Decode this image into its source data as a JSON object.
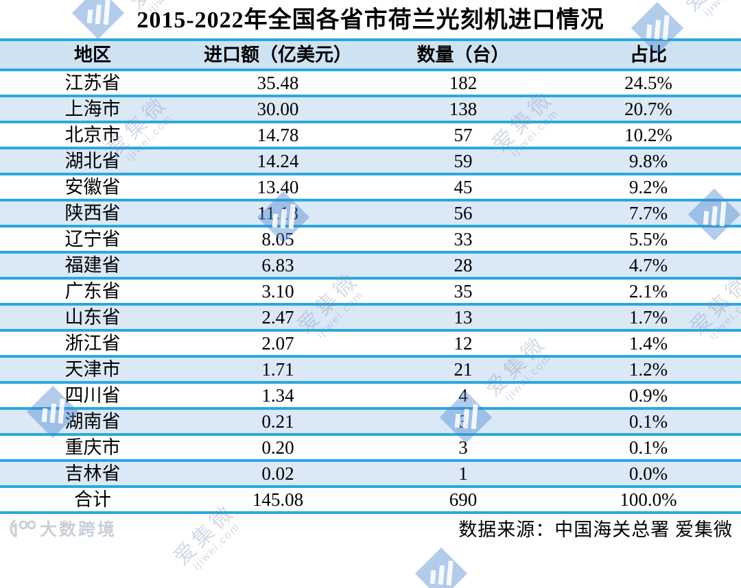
{
  "title": "2015-2022年全国各省市荷兰光刻机进口情况",
  "table": {
    "headers": [
      "地区",
      "进口额（亿美元）",
      "数量（台）",
      "占比"
    ],
    "rows": [
      {
        "region": "江苏省",
        "amount": "35.48",
        "units": "182",
        "share": "24.5%"
      },
      {
        "region": "上海市",
        "amount": "30.00",
        "units": "138",
        "share": "20.7%"
      },
      {
        "region": "北京市",
        "amount": "14.78",
        "units": "57",
        "share": "10.2%"
      },
      {
        "region": "湖北省",
        "amount": "14.24",
        "units": "59",
        "share": "9.8%"
      },
      {
        "region": "安徽省",
        "amount": "13.40",
        "units": "45",
        "share": "9.2%"
      },
      {
        "region": "陕西省",
        "amount": "11.18",
        "units": "56",
        "share": "7.7%"
      },
      {
        "region": "辽宁省",
        "amount": "8.05",
        "units": "33",
        "share": "5.5%"
      },
      {
        "region": "福建省",
        "amount": "6.83",
        "units": "28",
        "share": "4.7%"
      },
      {
        "region": "广东省",
        "amount": "3.10",
        "units": "35",
        "share": "2.1%"
      },
      {
        "region": "山东省",
        "amount": "2.47",
        "units": "13",
        "share": "1.7%"
      },
      {
        "region": "浙江省",
        "amount": "2.07",
        "units": "12",
        "share": "1.4%"
      },
      {
        "region": "天津市",
        "amount": "1.71",
        "units": "21",
        "share": "1.2%"
      },
      {
        "region": "四川省",
        "amount": "1.34",
        "units": "4",
        "share": "0.9%"
      },
      {
        "region": "湖南省",
        "amount": "0.21",
        "units": "3",
        "share": "0.1%"
      },
      {
        "region": "重庆市",
        "amount": "0.20",
        "units": "3",
        "share": "0.1%"
      },
      {
        "region": "吉林省",
        "amount": "0.02",
        "units": "1",
        "share": "0.0%"
      }
    ],
    "total": {
      "region": "合计",
      "amount": "145.08",
      "units": "690",
      "share": "100.0%"
    }
  },
  "footer": {
    "source": "数据来源：中国海关总署  爱集微",
    "watermark_brand": "大数跨境"
  },
  "watermark": {
    "brand": "爱集微",
    "domain": "ijiwei.com"
  },
  "colors": {
    "line_blue": "#29a8e0",
    "header_bg": "#cfe2f2",
    "row_alt_bg": "#dbe8f6",
    "watermark_blue": "#4a86cc"
  },
  "chart_data": {
    "type": "table",
    "title": "2015-2022年全国各省市荷兰光刻机进口情况",
    "columns": [
      "地区",
      "进口额（亿美元）",
      "数量（台）",
      "占比"
    ],
    "rows": [
      [
        "江苏省",
        35.48,
        182,
        "24.5%"
      ],
      [
        "上海市",
        30.0,
        138,
        "20.7%"
      ],
      [
        "北京市",
        14.78,
        57,
        "10.2%"
      ],
      [
        "湖北省",
        14.24,
        59,
        "9.8%"
      ],
      [
        "安徽省",
        13.4,
        45,
        "9.2%"
      ],
      [
        "陕西省",
        11.18,
        56,
        "7.7%"
      ],
      [
        "辽宁省",
        8.05,
        33,
        "5.5%"
      ],
      [
        "福建省",
        6.83,
        28,
        "4.7%"
      ],
      [
        "广东省",
        3.1,
        35,
        "2.1%"
      ],
      [
        "山东省",
        2.47,
        13,
        "1.7%"
      ],
      [
        "浙江省",
        2.07,
        12,
        "1.4%"
      ],
      [
        "天津市",
        1.71,
        21,
        "1.2%"
      ],
      [
        "四川省",
        1.34,
        4,
        "0.9%"
      ],
      [
        "湖南省",
        0.21,
        3,
        "0.1%"
      ],
      [
        "重庆市",
        0.2,
        3,
        "0.1%"
      ],
      [
        "吉林省",
        0.02,
        1,
        "0.0%"
      ]
    ],
    "total_row": [
      "合计",
      145.08,
      690,
      "100.0%"
    ],
    "source": "数据来源：中国海关总署  爱集微"
  }
}
